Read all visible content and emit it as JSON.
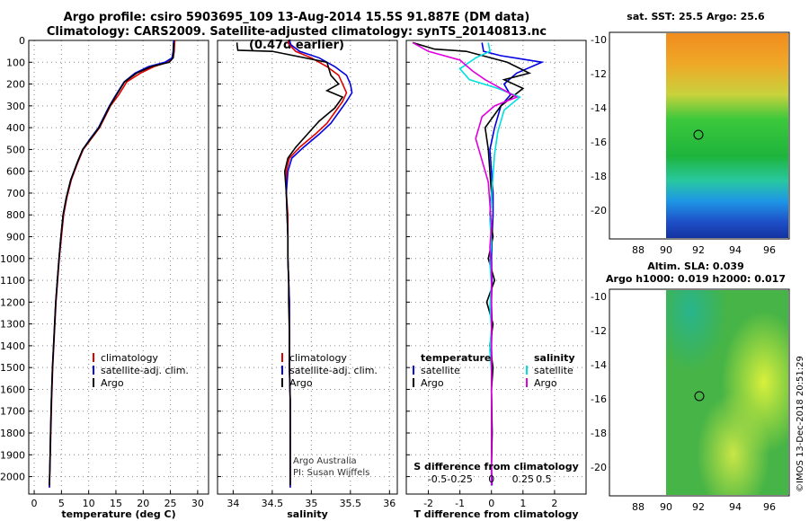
{
  "header": {
    "title_line1": "Argo profile: csiro 5903695_109 13-Aug-2014 15.5S 91.887E (DM data)",
    "title_line2": "Climatology: CARS2009. Satellite-adjusted climatology: synTS_20140813.nc (0.47d earlier)"
  },
  "maps": {
    "sst_title": "sat. SST: 25.5 Argo: 25.6",
    "sla_title_line1": "Altim. SLA: 0.039",
    "sla_title_line2": "Argo h1000: 0.019 h2000: 0.017"
  },
  "credit": "©IMOS 13-Dec-2018 20:51:29",
  "chart_data": [
    {
      "type": "line",
      "xlabel": "temperature (deg C)",
      "ylabel": "",
      "xlim": [
        -1,
        32
      ],
      "ylim": [
        2080,
        0
      ],
      "xticks": [
        0,
        5,
        10,
        15,
        20,
        25,
        30
      ],
      "yticks": [
        0,
        100,
        200,
        300,
        400,
        500,
        600,
        700,
        800,
        900,
        1000,
        1100,
        1200,
        1300,
        1400,
        1500,
        1600,
        1700,
        1800,
        1900,
        2000
      ],
      "legend": [
        "climatology",
        "satellite-adj. clim.",
        "Argo"
      ],
      "legend_position": "lower-right",
      "grid": true,
      "series": [
        {
          "name": "climatology",
          "color": "#e00000",
          "x": [
            25.8,
            25.7,
            25.5,
            24.5,
            22,
            19.5,
            17,
            15.5,
            14,
            13,
            12,
            10.5,
            9,
            8,
            6.8,
            6,
            5.4,
            5,
            4.6,
            4.3,
            4,
            3.7,
            3.4,
            3.2,
            3.05,
            2.9,
            2.8
          ],
          "y": [
            0,
            50,
            80,
            100,
            120,
            150,
            190,
            250,
            300,
            350,
            400,
            450,
            500,
            560,
            640,
            720,
            800,
            900,
            1000,
            1100,
            1200,
            1350,
            1500,
            1650,
            1800,
            1950,
            2050
          ]
        },
        {
          "name": "satellite-adj. clim.",
          "color": "#0000e0",
          "x": [
            25.6,
            25.5,
            25.3,
            24,
            21,
            18.5,
            16.5,
            15,
            13.8,
            12.8,
            11.8,
            10.3,
            8.9,
            7.9,
            6.7,
            5.9,
            5.3,
            4.9,
            4.55,
            4.25,
            3.95,
            3.65,
            3.35,
            3.15,
            3.0,
            2.88,
            2.78
          ],
          "y": [
            0,
            50,
            80,
            100,
            120,
            150,
            190,
            250,
            300,
            350,
            400,
            450,
            500,
            560,
            640,
            720,
            800,
            900,
            1000,
            1100,
            1200,
            1350,
            1500,
            1650,
            1800,
            1950,
            2050
          ]
        },
        {
          "name": "Argo",
          "color": "#000000",
          "x": [
            25.6,
            25.6,
            25.5,
            24.8,
            21.5,
            18.8,
            16.6,
            15.1,
            13.9,
            12.9,
            11.9,
            10.4,
            8.9,
            7.9,
            6.7,
            5.9,
            5.3,
            4.9,
            4.55,
            4.25,
            3.95,
            3.65,
            3.35,
            3.15,
            3.0,
            2.88,
            2.78
          ],
          "y": [
            10,
            50,
            80,
            100,
            120,
            150,
            190,
            250,
            300,
            350,
            400,
            450,
            500,
            560,
            640,
            720,
            800,
            900,
            1000,
            1100,
            1200,
            1350,
            1500,
            1650,
            1800,
            1950,
            2040
          ]
        }
      ]
    },
    {
      "type": "line",
      "xlabel": "salinity",
      "xlim": [
        33.8,
        36.1
      ],
      "ylim": [
        2080,
        0
      ],
      "xticks": [
        34,
        34.5,
        35,
        35.5,
        36
      ],
      "legend": [
        "climatology",
        "satellite-adj. clim.",
        "Argo"
      ],
      "legend_position": "lower-right",
      "annotation": [
        "Argo Australia",
        "PI: Susan Wijffels"
      ],
      "grid": true,
      "series": [
        {
          "name": "climatology",
          "color": "#e00000",
          "x": [
            34.7,
            34.72,
            34.8,
            35.0,
            35.2,
            35.35,
            35.4,
            35.45,
            35.4,
            35.3,
            35.2,
            35.05,
            34.85,
            34.72,
            34.68,
            34.68,
            34.7,
            34.7,
            34.7,
            34.71,
            34.72,
            34.72,
            34.72,
            34.73,
            34.73,
            34.73,
            34.73
          ],
          "y": [
            0,
            20,
            50,
            80,
            120,
            160,
            200,
            240,
            280,
            330,
            380,
            430,
            490,
            540,
            600,
            700,
            800,
            900,
            1000,
            1100,
            1200,
            1350,
            1500,
            1650,
            1800,
            1950,
            2050
          ]
        },
        {
          "name": "satellite-adj. clim.",
          "color": "#0000e0",
          "x": [
            34.72,
            34.74,
            34.85,
            35.1,
            35.3,
            35.45,
            35.5,
            35.52,
            35.45,
            35.35,
            35.25,
            35.1,
            34.9,
            34.75,
            34.7,
            34.68,
            34.69,
            34.7,
            34.7,
            34.71,
            34.72,
            34.72,
            34.72,
            34.73,
            34.73,
            34.73,
            34.73
          ],
          "y": [
            0,
            20,
            50,
            80,
            120,
            160,
            200,
            240,
            280,
            330,
            380,
            430,
            490,
            540,
            600,
            700,
            800,
            900,
            1000,
            1100,
            1200,
            1350,
            1500,
            1650,
            1800,
            1950,
            2050
          ]
        },
        {
          "name": "Argo",
          "color": "#000000",
          "x": [
            34.05,
            34.05,
            34.06,
            34.5,
            35.2,
            35.25,
            35.35,
            35.2,
            35.4,
            35.3,
            35.1,
            34.95,
            34.8,
            34.7,
            34.66,
            34.68,
            34.69,
            34.7,
            34.7,
            34.71,
            34.71,
            34.72,
            34.72,
            34.73,
            34.73,
            34.73,
            34.73
          ],
          "y": [
            10,
            20,
            45,
            50,
            100,
            160,
            200,
            230,
            260,
            310,
            370,
            430,
            490,
            540,
            600,
            700,
            800,
            900,
            1000,
            1100,
            1200,
            1350,
            1500,
            1650,
            1800,
            1950,
            2040
          ]
        }
      ]
    },
    {
      "type": "line",
      "xlabel": "T difference from climatology",
      "xlabel_top": "S difference from climatology",
      "xlim": [
        -2.7,
        3.0
      ],
      "ylim": [
        2080,
        0
      ],
      "xticks": [
        -2,
        -1,
        0,
        1,
        2
      ],
      "xticks_top": [
        "-0.5",
        "-0.25",
        "0",
        "0.25",
        "0.5"
      ],
      "legend": [
        "temperature",
        "satellite",
        "Argo",
        "salinity",
        "satellite",
        "Argo"
      ],
      "legend_position": "lower",
      "grid": true,
      "series": [
        {
          "name": "satellite",
          "color": "#0000e0",
          "x": [
            -0.3,
            -0.25,
            0.3,
            1.6,
            0.8,
            0.4,
            0.6,
            0.3,
            0.1,
            -0.05,
            0,
            0.05,
            0.05,
            0.02,
            0,
            0.02,
            0,
            0.02,
            0,
            0.02,
            0,
            0.02,
            0.0,
            0.02
          ],
          "y": [
            10,
            50,
            70,
            100,
            150,
            200,
            250,
            300,
            400,
            500,
            600,
            700,
            800,
            900,
            1000,
            1100,
            1200,
            1300,
            1400,
            1500,
            1600,
            1800,
            1950,
            2040
          ]
        },
        {
          "name": "Argo",
          "color": "#000000",
          "x": [
            -2.5,
            -1.8,
            -0.8,
            0.5,
            1.2,
            0.4,
            1.0,
            0.3,
            -0.2,
            -0.1,
            -0.05,
            0.0,
            -0.05,
            0.05,
            -0.1,
            0.1,
            -0.15,
            0.05,
            -0.05,
            0.05,
            0.0,
            0.02,
            0.0,
            0.0
          ],
          "y": [
            10,
            40,
            50,
            100,
            150,
            180,
            220,
            300,
            400,
            500,
            600,
            700,
            800,
            900,
            1000,
            1100,
            1200,
            1300,
            1400,
            1500,
            1600,
            1800,
            1950,
            2040
          ]
        },
        {
          "name": "satellite",
          "color": "#00e0e0",
          "x": [
            -0.1,
            -0.05,
            -0.5,
            -1.0,
            -0.7,
            0.2,
            0.9,
            0.4,
            0.2,
            0.1,
            0.05,
            0.0,
            -0.05,
            0.0,
            -0.05,
            0.0,
            -0.05,
            0.0,
            -0.05,
            0.0,
            0.0,
            0.0,
            0.0,
            0.0
          ],
          "y": [
            10,
            50,
            80,
            130,
            180,
            220,
            260,
            320,
            420,
            520,
            620,
            720,
            820,
            920,
            1020,
            1120,
            1220,
            1320,
            1420,
            1520,
            1620,
            1820,
            1950,
            2040
          ]
        },
        {
          "name": "Argo",
          "color": "#e000e0",
          "x": [
            -2.5,
            -2.0,
            -1.0,
            -0.6,
            -0.2,
            0.3,
            0.8,
            0.1,
            -0.3,
            -0.5,
            -0.3,
            -0.1,
            -0.05,
            0.0,
            -0.05,
            0.0,
            0.0,
            0.0,
            0.0,
            0.0,
            0.0,
            0.0,
            0.0,
            0.0
          ],
          "y": [
            10,
            50,
            90,
            140,
            180,
            220,
            260,
            300,
            350,
            450,
            550,
            650,
            750,
            850,
            950,
            1050,
            1150,
            1250,
            1350,
            1450,
            1600,
            1800,
            1950,
            2040
          ]
        }
      ]
    }
  ],
  "map_axes": {
    "lon_ticks": [
      "88",
      "90",
      "92",
      "94",
      "96"
    ],
    "lat_ticks": [
      "-10",
      "-12",
      "-14",
      "-16",
      "-18",
      "-20"
    ]
  }
}
